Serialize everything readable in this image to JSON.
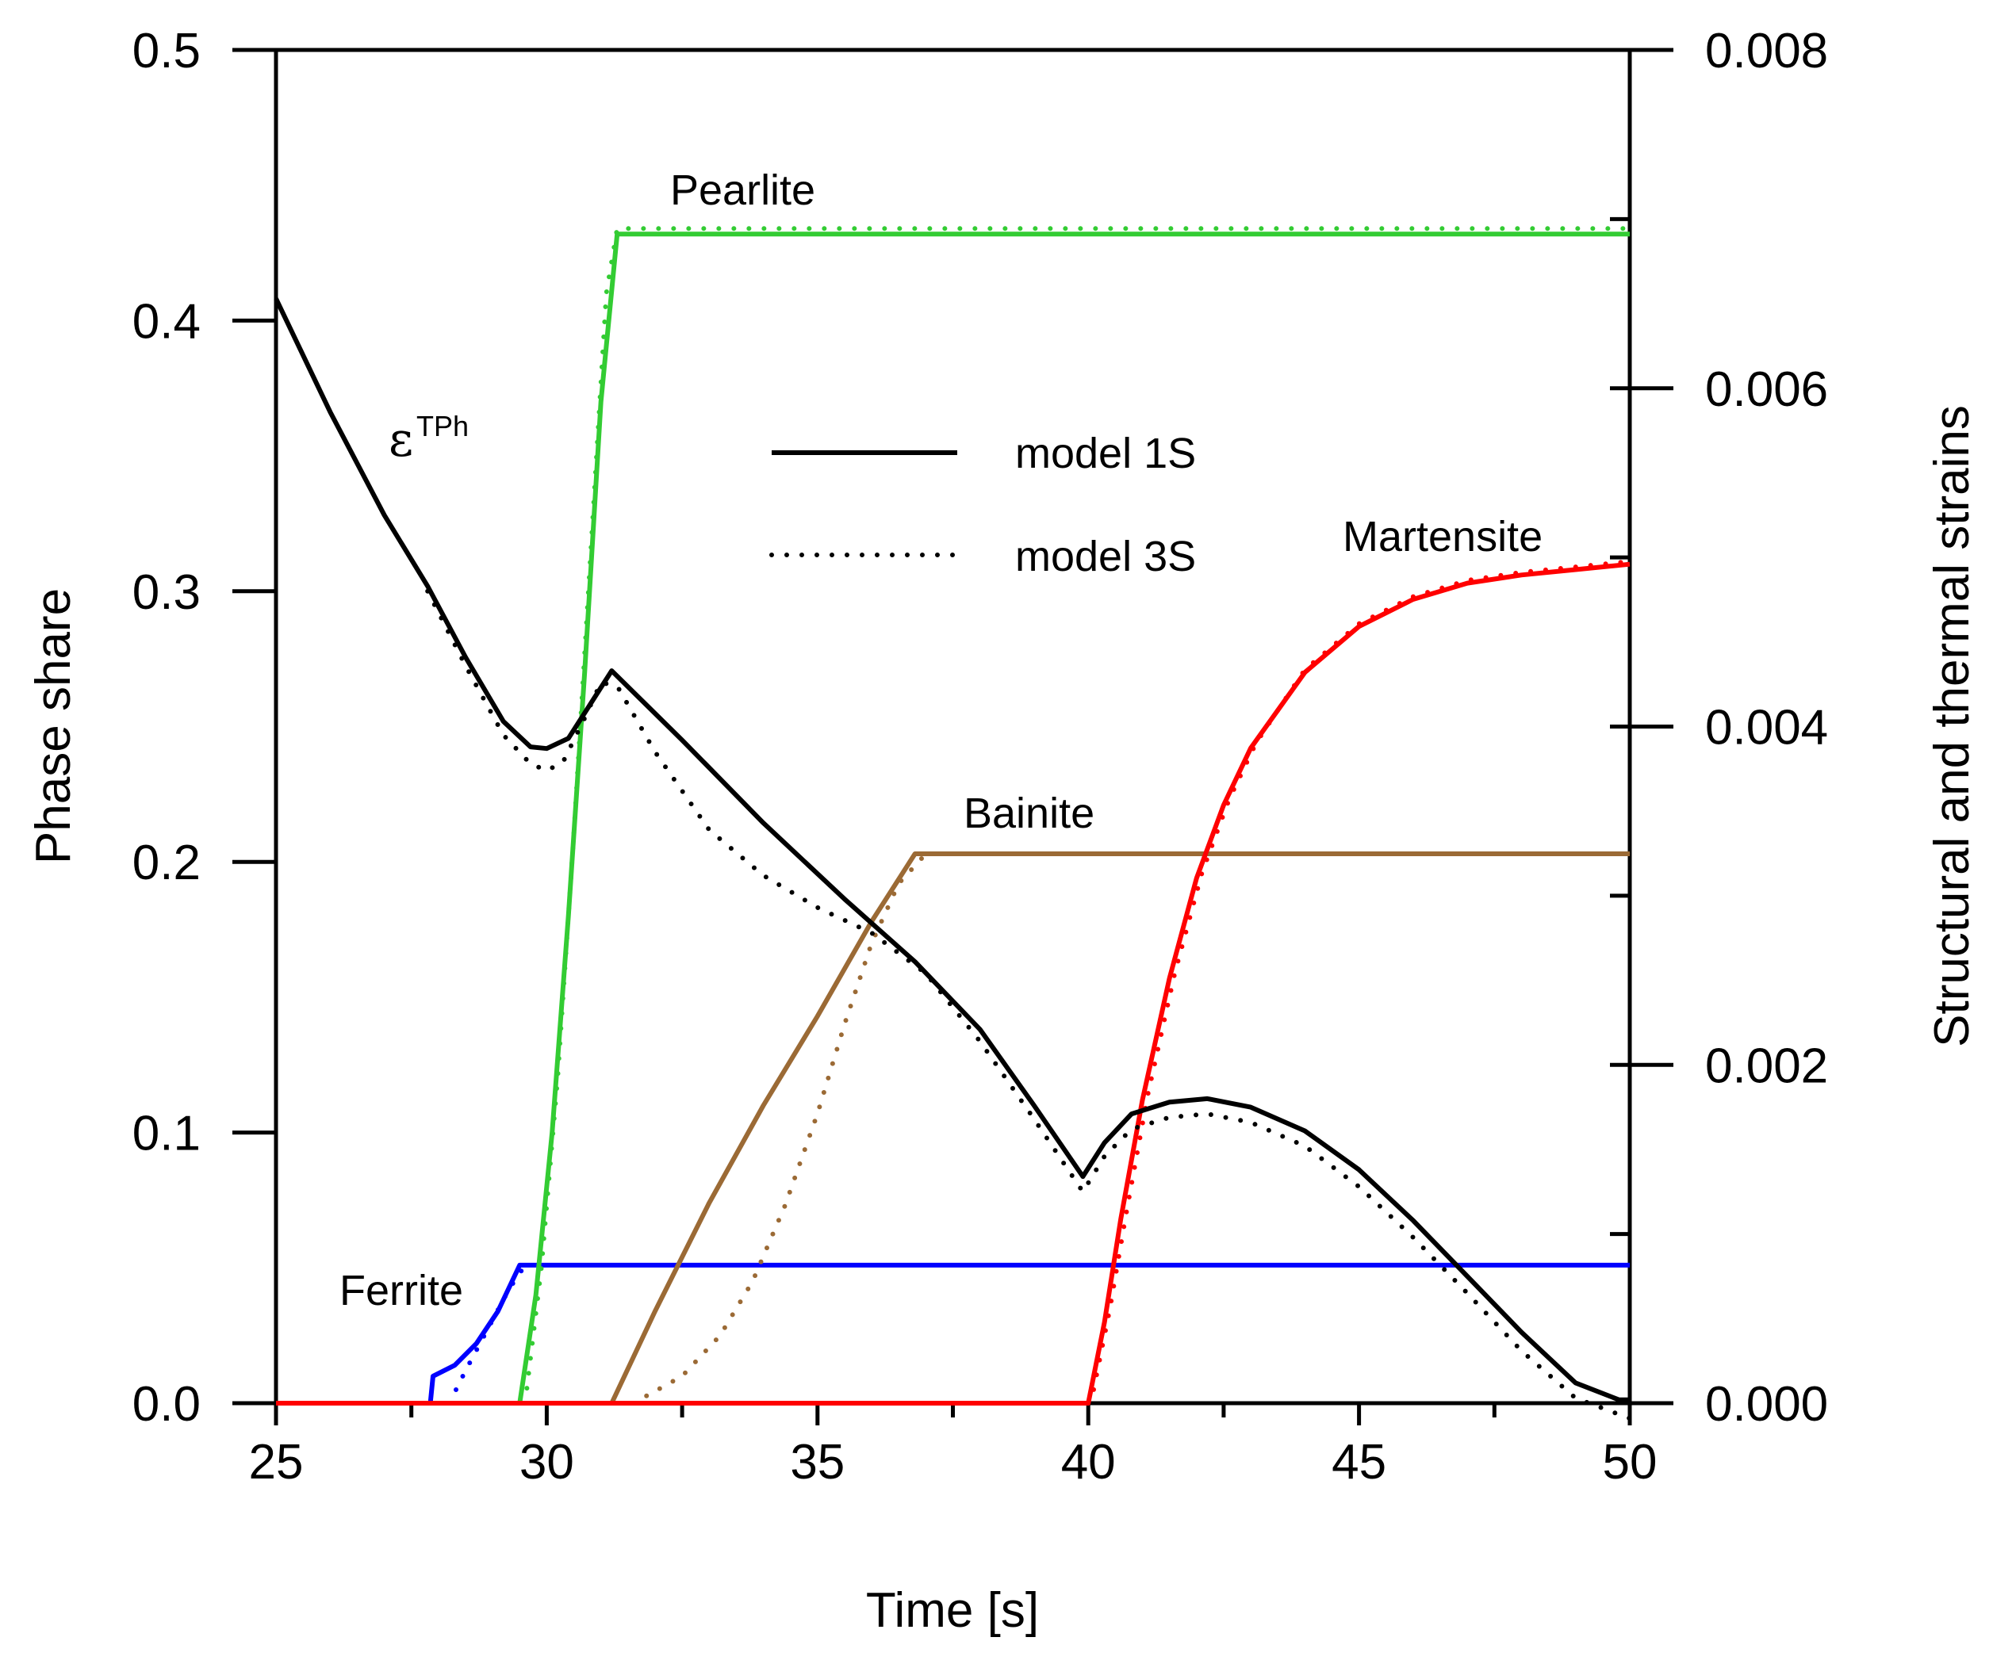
{
  "chart_data": {
    "type": "line",
    "title": "",
    "xlabel": "Time [s]",
    "ylabel": "Phase share",
    "y2label": "Structural and thermal strains",
    "xlim": [
      25,
      50
    ],
    "ylim": [
      0,
      0.5
    ],
    "y2lim": [
      0,
      0.008
    ],
    "x_ticks": [
      "25",
      "30",
      "35",
      "40",
      "45",
      "50"
    ],
    "y_ticks": [
      "0.0",
      "0.1",
      "0.2",
      "0.3",
      "0.4",
      "0.5"
    ],
    "y2_ticks": [
      "0.000",
      "0.002",
      "0.004",
      "0.006",
      "0.008"
    ],
    "grid": false,
    "legend": {
      "position": "top-center",
      "entries": [
        {
          "label": "model 1S",
          "style": "solid"
        },
        {
          "label": "model 3S",
          "style": "dotted"
        }
      ]
    },
    "colors": {
      "ferrite": "#0000ff",
      "pearlite": "#33cc33",
      "bainite": "#9b6a35",
      "martensite": "#ff0000",
      "strain": "#000000"
    },
    "annotations": {
      "pearlite": "Pearlite",
      "bainite": "Bainite",
      "martensite": "Martensite",
      "ferrite": "Ferrite",
      "strain_symbol": "ε",
      "strain_superscript": "TPh"
    },
    "series": [
      {
        "name": "Ferrite (model 1S)",
        "axis": "left",
        "style": "solid",
        "color": "#0000ff",
        "x": [
          25,
          27.85,
          27.9,
          28.3,
          28.7,
          29.1,
          29.5,
          50
        ],
        "y": [
          0,
          0,
          0.01,
          0.014,
          0.022,
          0.034,
          0.051,
          0.051
        ]
      },
      {
        "name": "Ferrite (model 3S)",
        "axis": "left",
        "style": "dotted",
        "color": "#0000ff",
        "x": [
          28.2,
          28.5,
          28.9,
          29.3,
          29.6
        ],
        "y": [
          0,
          0.012,
          0.027,
          0.042,
          0.051
        ]
      },
      {
        "name": "Pearlite (model 1S)",
        "axis": "left",
        "style": "solid",
        "color": "#33cc33",
        "x": [
          25,
          29.5,
          29.8,
          30.1,
          30.4,
          30.7,
          31.0,
          31.3,
          50
        ],
        "y": [
          0,
          0,
          0.04,
          0.1,
          0.18,
          0.27,
          0.37,
          0.432,
          0.432
        ]
      },
      {
        "name": "Pearlite (model 3S)",
        "axis": "left",
        "style": "dotted",
        "color": "#33cc33",
        "x": [
          29.6,
          29.9,
          30.2,
          30.5,
          30.8,
          31.1,
          31.3,
          50
        ],
        "y": [
          0,
          0.05,
          0.12,
          0.21,
          0.31,
          0.41,
          0.434,
          0.434
        ]
      },
      {
        "name": "Bainite (model 1S)",
        "axis": "left",
        "style": "solid",
        "color": "#9b6a35",
        "x": [
          25,
          31.2,
          32.0,
          33.0,
          34.0,
          35.0,
          36.0,
          36.8,
          50
        ],
        "y": [
          0,
          0,
          0.034,
          0.074,
          0.11,
          0.143,
          0.178,
          0.203,
          0.203
        ]
      },
      {
        "name": "Bainite (model 3S)",
        "axis": "left",
        "style": "dotted",
        "color": "#9b6a35",
        "x": [
          31.6,
          32.5,
          33.2,
          33.8,
          34.4,
          35.0,
          35.5,
          36.0,
          36.5,
          37.0,
          50
        ],
        "y": [
          0,
          0.01,
          0.025,
          0.045,
          0.073,
          0.107,
          0.14,
          0.17,
          0.192,
          0.203,
          0.203
        ]
      },
      {
        "name": "Martensite (model 1S)",
        "axis": "left",
        "style": "solid",
        "color": "#ff0000",
        "x": [
          25,
          40.0,
          40.3,
          40.6,
          41.0,
          41.5,
          42.0,
          42.5,
          43.0,
          44.0,
          45.0,
          46.0,
          47.0,
          48.0,
          49.0,
          50.0
        ],
        "y": [
          0,
          0,
          0.03,
          0.068,
          0.112,
          0.157,
          0.194,
          0.221,
          0.242,
          0.27,
          0.287,
          0.297,
          0.303,
          0.306,
          0.308,
          0.31
        ]
      },
      {
        "name": "Martensite (model 3S)",
        "axis": "left",
        "style": "dotted",
        "color": "#ff0000",
        "x": [
          40.1,
          40.4,
          40.7,
          41.1,
          41.6,
          42.1,
          42.6,
          43.1,
          44.0,
          45.0,
          46.0,
          47.0,
          48.0,
          49.0,
          50.0
        ],
        "y": [
          0.005,
          0.035,
          0.07,
          0.114,
          0.159,
          0.196,
          0.223,
          0.244,
          0.271,
          0.288,
          0.298,
          0.304,
          0.307,
          0.309,
          0.311
        ]
      },
      {
        "name": "Strain εTPh (model 1S)",
        "axis": "right",
        "style": "solid",
        "color": "#000000",
        "x": [
          25,
          26,
          27,
          27.8,
          28.5,
          29.2,
          29.7,
          30.0,
          30.4,
          30.8,
          31.2,
          32.5,
          34.0,
          35.5,
          36.8,
          38.0,
          39.0,
          39.9,
          40.3,
          40.8,
          41.5,
          42.2,
          43.0,
          44.0,
          45.0,
          46.0,
          47.0,
          48.0,
          49.0,
          49.8,
          50.0
        ],
        "y": [
          0.00653,
          0.00586,
          0.00525,
          0.00483,
          0.00441,
          0.00403,
          0.00388,
          0.00387,
          0.00393,
          0.00413,
          0.00433,
          0.00392,
          0.00343,
          0.00298,
          0.00261,
          0.00221,
          0.00176,
          0.00134,
          0.00154,
          0.00171,
          0.00178,
          0.0018,
          0.00175,
          0.00161,
          0.00138,
          0.00108,
          0.00075,
          0.00042,
          0.00012,
          2e-05,
          2e-05
        ]
      },
      {
        "name": "Strain εTPh (model 3S)",
        "axis": "right",
        "style": "dotted",
        "color": "#000000",
        "x": [
          27.8,
          28.5,
          29.2,
          29.7,
          30.0,
          30.3,
          30.7,
          31.0,
          31.3,
          32.0,
          33.0,
          34.0,
          35.0,
          36.0,
          37.0,
          38.0,
          39.0,
          39.9,
          40.3,
          40.8,
          41.5,
          42.2,
          43.0,
          44.0,
          45.0,
          46.0,
          47.0,
          48.0,
          49.0,
          50.0
        ],
        "y": [
          0.0048,
          0.00436,
          0.00395,
          0.00378,
          0.00374,
          0.00379,
          0.00405,
          0.00426,
          0.00424,
          0.00385,
          0.00339,
          0.00312,
          0.00293,
          0.00278,
          0.00254,
          0.00214,
          0.00168,
          0.00125,
          0.00146,
          0.00162,
          0.00169,
          0.00171,
          0.00166,
          0.00152,
          0.00128,
          0.00098,
          0.00065,
          0.00031,
          3e-05,
          -9e-05
        ]
      }
    ]
  }
}
